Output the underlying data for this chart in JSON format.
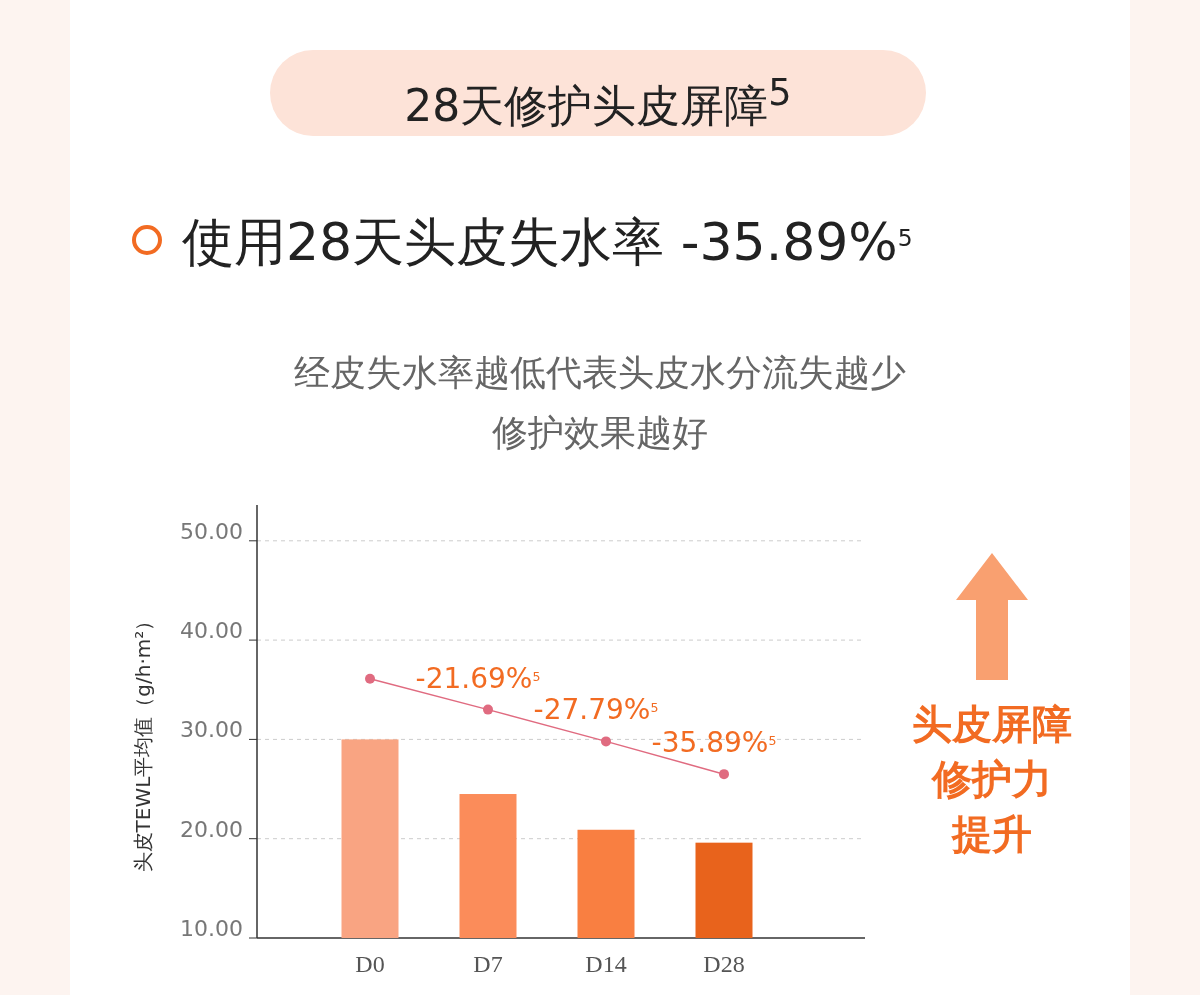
{
  "chart_data": {
    "type": "bar",
    "title": "28天修护头皮屏障$^{5}$",
    "subtitle": "使用28天头皮失水率 -35.89%$^{5}$",
    "ylabel": "头皮TEWL平均值（g/h·m²）",
    "categories": [
      "D0",
      "D7",
      "D14",
      "D28"
    ],
    "series": [
      {
        "colors": [
          "#f9a482",
          "#fb8c5a",
          "#f97f41",
          "#e8631c"
        ],
        "values": [
          30.0,
          24.5,
          20.9,
          19.6
        ]
      },
      {
        "type": "line",
        "color": "#e06b80",
        "marker": "circle",
        "values": [
          36.1,
          33.0,
          29.8,
          26.5
        ]
      }
    ],
    "ylim": [
      10,
      53.6
    ],
    "yticks": [
      {
        "value": 10,
        "label": "10.00"
      },
      {
        "value": 20,
        "label": "20.00"
      },
      {
        "value": 30,
        "label": "30.00"
      },
      {
        "value": 40,
        "label": "40.00"
      },
      {
        "value": 50,
        "label": "50.00"
      }
    ],
    "grid": "y",
    "annotations": [
      "经皮失水率越低代表头皮水分流失越少",
      "修护效果越好",
      {
        "text": "-21.69%$^{5}$",
        "x": "D7",
        "y": 33.0
      },
      {
        "text": "-27.79%$^{5}$",
        "x": "D14",
        "y": 29.8
      },
      {
        "text": "-35.89%$^{5}$",
        "x": "D28",
        "y": 26.5
      },
      "头皮屏障修护力提升"
    ]
  }
}
